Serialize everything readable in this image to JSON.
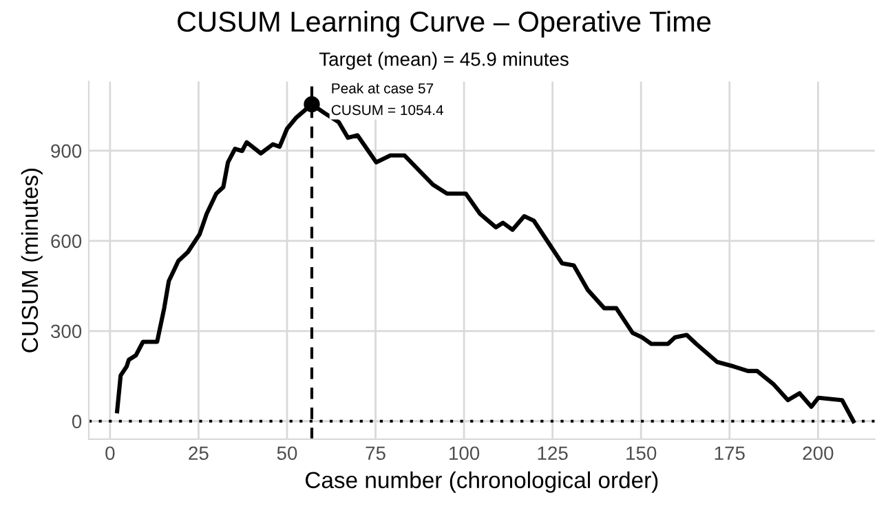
{
  "chart_data": {
    "type": "line",
    "title": "CUSUM Learning Curve – Operative Time",
    "subtitle": "Target (mean) = 45.9 minutes",
    "xlabel": "Case number (chronological order)",
    "ylabel": "CUSUM (minutes)",
    "series": [
      {
        "color": "#000000",
        "x": [
          2,
          3,
          4.7,
          5.3,
          7.3,
          9.3,
          13.3,
          15.3,
          16.6,
          19.3,
          22,
          25.3,
          27.3,
          30,
          32,
          33.3,
          35.3,
          37.3,
          38.6,
          42.6,
          46,
          47.9,
          50,
          52.6,
          57,
          60.6,
          64.6,
          67.2,
          69.9,
          75.2,
          79.2,
          83.2,
          91.2,
          95.2,
          100.5,
          104.5,
          109,
          111,
          113.7,
          117,
          119.7,
          127.7,
          131,
          135,
          139.6,
          143,
          147.6,
          150.3,
          152.9,
          157.6,
          159.6,
          162.9,
          165.6,
          171.5,
          176.2,
          180.2,
          182.8,
          187.5,
          191.5,
          194.8,
          198.1,
          200.1,
          206.8,
          210
        ],
        "values": [
          33,
          152,
          182,
          204,
          219,
          264,
          264,
          376,
          466,
          533,
          563,
          622,
          690,
          757,
          779,
          861,
          906,
          899,
          928,
          891,
          921,
          913,
          973,
          1010,
          1054.4,
          1025,
          995,
          943,
          951,
          861,
          884,
          884,
          787,
          757,
          757,
          690,
          645,
          660,
          637,
          682,
          667,
          525,
          518,
          436,
          376,
          376,
          294,
          279,
          257,
          257,
          279,
          287,
          257,
          197,
          182,
          167,
          167,
          122,
          70,
          93,
          48,
          78,
          70,
          0
        ]
      },
      {
        "type": "scatter",
        "color": "#000000",
        "x": [
          57
        ],
        "values": [
          1054.4
        ]
      }
    ],
    "annotations": [
      {
        "text": "Peak at case 57\nCUSUM = 1054.4",
        "x": 57,
        "y": 1054.4
      }
    ],
    "ref_lines": [
      {
        "axis": "x",
        "value": 57,
        "line_style": "dashed",
        "color": "#000000"
      },
      {
        "axis": "y",
        "value": 0,
        "line_style": "dotted",
        "color": "#000000"
      }
    ],
    "xlim": [
      -6,
      216
    ],
    "ylim": [
      -60,
      1130
    ],
    "xticks": [
      0,
      25,
      50,
      75,
      100,
      125,
      150,
      175,
      200
    ],
    "yticks": [
      0,
      300,
      600,
      900
    ],
    "grid": true,
    "legend": false
  }
}
